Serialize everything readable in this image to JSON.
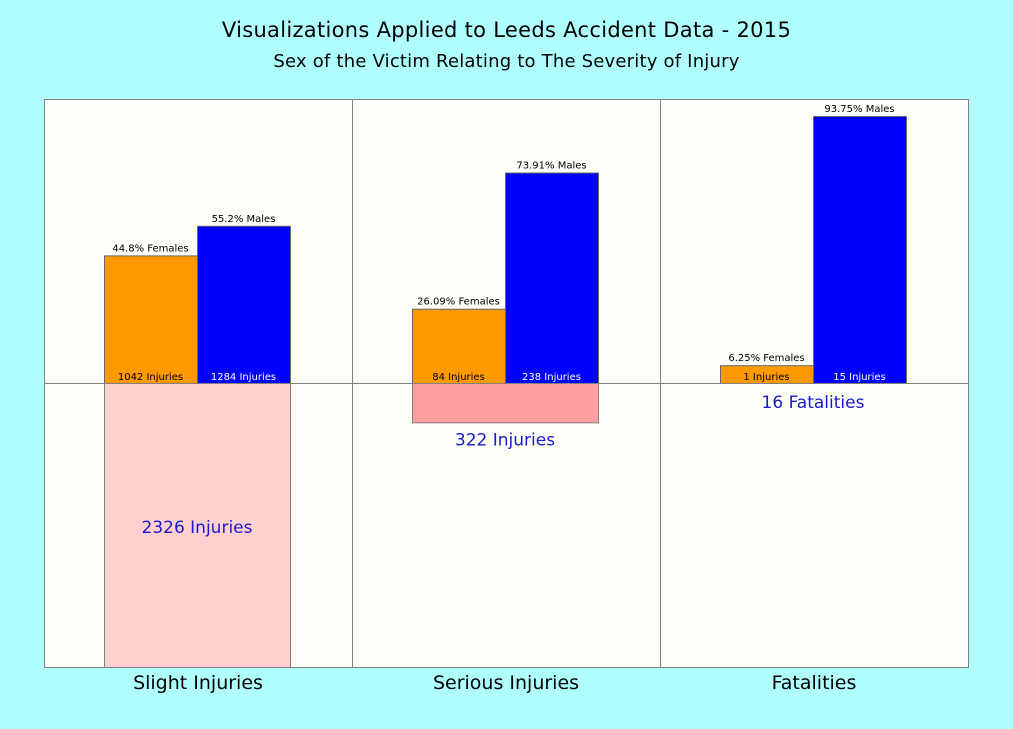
{
  "title": "Visualizations Applied to Leeds Accident Data - 2015",
  "subtitle": "Sex of the Victim Relating to The Severity of Injury",
  "colors": {
    "background": "#b0ffff",
    "panel": "#fdfef7",
    "female": "#ff9900",
    "male": "#0000ff",
    "total_slight": "#ffd0d0",
    "total_serious": "#ffa0a0",
    "total_text": "#1a1acc"
  },
  "chart_data": {
    "type": "bar",
    "categories": [
      "Slight Injuries",
      "Serious Injuries",
      "Fatalities"
    ],
    "series": [
      {
        "name": "Females",
        "values": [
          44.8,
          26.09,
          6.25
        ],
        "counts": [
          1042,
          84,
          1
        ],
        "labels": [
          "44.8% Females",
          "26.09% Females",
          "6.25% Females"
        ],
        "count_labels": [
          "1042 Injuries",
          "84 Injuries",
          "1 Injuries"
        ]
      },
      {
        "name": "Males",
        "values": [
          55.2,
          73.91,
          93.75
        ],
        "counts": [
          1284,
          238,
          15
        ],
        "labels": [
          "55.2% Males",
          "73.91% Males",
          "93.75% Males"
        ],
        "count_labels": [
          "1284 Injuries",
          "238 Injuries",
          "15 Injuries"
        ]
      }
    ],
    "totals": [
      2326,
      322,
      16
    ],
    "total_labels": [
      "2326 Injuries",
      "322 Injuries",
      "16 Fatalities"
    ],
    "grid": false
  }
}
